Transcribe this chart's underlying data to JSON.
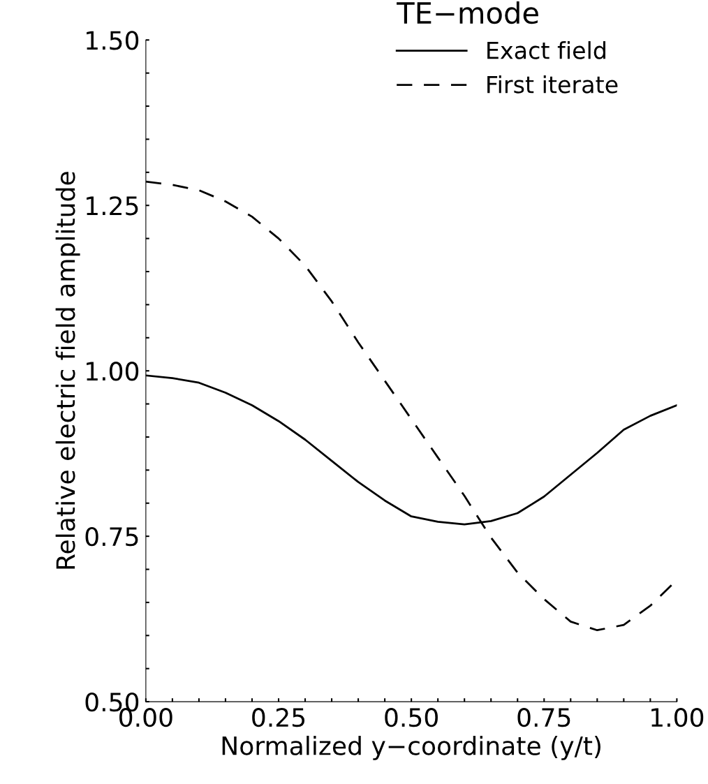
{
  "chart_data": {
    "type": "line",
    "xlabel": "Normalized y−coordinate (y/t)",
    "ylabel": "Relative electric field amplitude",
    "legend_title": "TE−mode",
    "legend": "top right",
    "grid": false,
    "marker": "none",
    "xlim": [
      0,
      1
    ],
    "ylim": [
      0.5,
      1.5
    ],
    "xticks": [
      {
        "value": 0,
        "label": "0.00"
      },
      {
        "value": 0.05,
        "label": null
      },
      {
        "value": 0.1,
        "label": null
      },
      {
        "value": 0.15,
        "label": null
      },
      {
        "value": 0.2,
        "label": null
      },
      {
        "value": 0.25,
        "label": "0.25"
      },
      {
        "value": 0.3,
        "label": null
      },
      {
        "value": 0.35,
        "label": null
      },
      {
        "value": 0.4,
        "label": null
      },
      {
        "value": 0.45,
        "label": null
      },
      {
        "value": 0.5,
        "label": "0.50"
      },
      {
        "value": 0.55,
        "label": null
      },
      {
        "value": 0.6,
        "label": null
      },
      {
        "value": 0.65,
        "label": null
      },
      {
        "value": 0.7,
        "label": null
      },
      {
        "value": 0.75,
        "label": "0.75"
      },
      {
        "value": 0.8,
        "label": null
      },
      {
        "value": 0.85,
        "label": null
      },
      {
        "value": 0.9,
        "label": null
      },
      {
        "value": 0.95,
        "label": null
      },
      {
        "value": 1,
        "label": "1.00"
      }
    ],
    "yticks": [
      {
        "value": 0.5,
        "label": "0.50"
      },
      {
        "value": 0.55,
        "label": null
      },
      {
        "value": 0.6,
        "label": null
      },
      {
        "value": 0.65,
        "label": null
      },
      {
        "value": 0.7,
        "label": null
      },
      {
        "value": 0.75,
        "label": "0.75"
      },
      {
        "value": 0.8,
        "label": null
      },
      {
        "value": 0.85,
        "label": null
      },
      {
        "value": 0.9,
        "label": null
      },
      {
        "value": 0.95,
        "label": null
      },
      {
        "value": 1,
        "label": "1.00"
      },
      {
        "value": 1.05,
        "label": null
      },
      {
        "value": 1.1,
        "label": null
      },
      {
        "value": 1.15,
        "label": null
      },
      {
        "value": 1.2,
        "label": null
      },
      {
        "value": 1.25,
        "label": "1.25"
      },
      {
        "value": 1.3,
        "label": null
      },
      {
        "value": 1.35,
        "label": null
      },
      {
        "value": 1.4,
        "label": null
      },
      {
        "value": 1.45,
        "label": null
      },
      {
        "value": 1.5,
        "label": "1.50"
      }
    ],
    "x": [
      0,
      0.05,
      0.1,
      0.15,
      0.2,
      0.25,
      0.3,
      0.35,
      0.4,
      0.45,
      0.5,
      0.55,
      0.6,
      0.65,
      0.7,
      0.75,
      0.8,
      0.85,
      0.9,
      0.95,
      1
    ],
    "series": [
      {
        "name": "Exact field",
        "color": "#000000",
        "line_style": "solid",
        "values": [
          0.993,
          0.989,
          0.982,
          0.967,
          0.948,
          0.924,
          0.896,
          0.864,
          0.832,
          0.804,
          0.78,
          0.772,
          0.768,
          0.773,
          0.785,
          0.81,
          0.843,
          0.876,
          0.911,
          0.932,
          0.948
        ]
      },
      {
        "name": "First iterate",
        "color": "#000000",
        "line_style": "dashed",
        "values": [
          1.286,
          1.281,
          1.273,
          1.256,
          1.233,
          1.2,
          1.159,
          1.105,
          1.043,
          0.985,
          0.927,
          0.869,
          0.811,
          0.748,
          0.695,
          0.655,
          0.621,
          0.608,
          0.616,
          0.645,
          0.684
        ]
      }
    ]
  }
}
